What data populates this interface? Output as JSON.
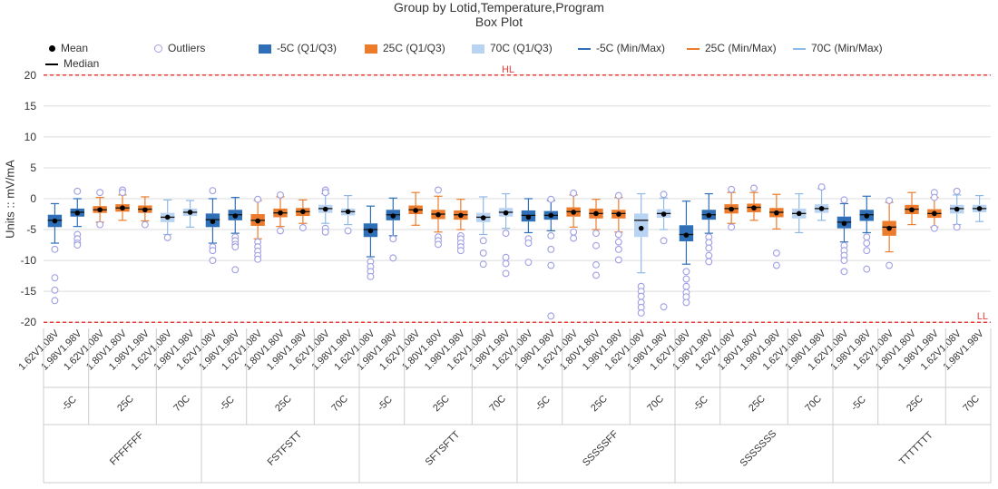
{
  "chart_data": {
    "type": "box",
    "title": "Group by Lotid,Temperature,Program",
    "subtitle": "Box Plot",
    "ylabel": "Units :: mV/mA",
    "ylim": [
      -21,
      21
    ],
    "yticks": [
      20,
      15,
      10,
      5,
      0,
      -5,
      -10,
      -15,
      -20
    ],
    "grid": true,
    "legend_position": "top",
    "limit_lines": [
      {
        "label": "HL",
        "value": 20,
        "color": "#e8403a"
      },
      {
        "label": "LL",
        "value": -20,
        "color": "#e8403a"
      }
    ],
    "legend": {
      "mean": "Mean",
      "median": "Median",
      "outliers": "Outliers",
      "box_m5": "-5C (Q1/Q3)",
      "box_25": "25C (Q1/Q3)",
      "box_70": "70C (Q1/Q3)",
      "mm_m5": "-5C (Min/Max)",
      "mm_25": "25C (Min/Max)",
      "mm_70": "70C (Min/Max)"
    },
    "colors": {
      "-5C": "#2e6fb7",
      "25C": "#ec7c2c",
      "70C": "#b8d4f2",
      "outlier": "#9f9fe3",
      "mean": "#000000",
      "limit": "#e8403a"
    },
    "lots": [
      {
        "lot": "FFFFFFF",
        "temps": [
          {
            "temp": "-5C",
            "boxes": [
              {
                "program": "1.62V1.08V",
                "min": -7.2,
                "q1": -4.6,
                "median": -3.5,
                "q3": -2.6,
                "max": -0.8,
                "mean": -3.6,
                "outliers": [
                  -8.2,
                  -12.8,
                  -14.8,
                  -16.5
                ]
              },
              {
                "program": "1.98V1.98V",
                "min": -4.5,
                "q1": -2.9,
                "median": -2.2,
                "q3": -1.6,
                "max": 0,
                "mean": -2.3,
                "outliers": [
                  1.2,
                  -5.8,
                  -6.5,
                  -7.2,
                  -7.5
                ]
              }
            ]
          },
          {
            "temp": "25C",
            "boxes": [
              {
                "program": "1.62V1.08V",
                "min": -3.8,
                "q1": -2.3,
                "median": -1.8,
                "q3": -1.2,
                "max": 0.2,
                "mean": -1.8,
                "outliers": [
                  1,
                  -4.2
                ]
              },
              {
                "program": "1.80V1.80V",
                "min": -3.5,
                "q1": -2.1,
                "median": -1.5,
                "q3": -0.9,
                "max": 0.6,
                "mean": -1.5,
                "outliers": [
                  1.4,
                  1.0
                ]
              },
              {
                "program": "1.98V1.98V",
                "min": -3.6,
                "q1": -2.3,
                "median": -1.7,
                "q3": -1.1,
                "max": 0.3,
                "mean": -1.8,
                "outliers": [
                  -4.2
                ]
              }
            ]
          },
          {
            "temp": "70C",
            "boxes": [
              {
                "program": "1.62V1.08V",
                "min": -5.8,
                "q1": -3.8,
                "median": -3.0,
                "q3": -2.3,
                "max": -0.2,
                "mean": -3.0,
                "outliers": [
                  -6.3
                ]
              },
              {
                "program": "1.98V1.98V",
                "min": -4.6,
                "q1": -2.8,
                "median": -2.2,
                "q3": -1.6,
                "max": -0.3,
                "mean": -2.2,
                "outliers": []
              }
            ]
          }
        ]
      },
      {
        "lot": "FSTFSTT",
        "temps": [
          {
            "temp": "-5C",
            "boxes": [
              {
                "program": "1.62V1.08V",
                "min": -7.2,
                "q1": -4.6,
                "median": -3.4,
                "q3": -2.4,
                "max": 0,
                "mean": -3.7,
                "outliers": [
                  1.3,
                  -7.8,
                  -8.4,
                  -10.0
                ]
              },
              {
                "program": "1.98V1.98V",
                "min": -5.6,
                "q1": -3.5,
                "median": -2.6,
                "q3": -1.8,
                "max": 0.2,
                "mean": -2.8,
                "outliers": [
                  -6.2,
                  -6.8,
                  -7.4,
                  -7.8,
                  -11.5
                ]
              }
            ]
          },
          {
            "temp": "25C",
            "boxes": [
              {
                "program": "1.62V1.08V",
                "min": -6.5,
                "q1": -4.4,
                "median": -3.5,
                "q3": -2.5,
                "max": -0.3,
                "mean": -3.6,
                "outliers": [
                  -0.1,
                  -7.0,
                  -7.8,
                  -8.5,
                  -9.2,
                  -9.8
                ]
              },
              {
                "program": "1.80V1.80V",
                "min": -4.5,
                "q1": -3.0,
                "median": -2.3,
                "q3": -1.6,
                "max": 0.3,
                "mean": -2.3,
                "outliers": [
                  0.6,
                  -5.2
                ]
              },
              {
                "program": "1.98V1.98V",
                "min": -4.0,
                "q1": -2.8,
                "median": -2.1,
                "q3": -1.5,
                "max": -0.2,
                "mean": -2.1,
                "outliers": [
                  -4.7
                ]
              }
            ]
          },
          {
            "temp": "70C",
            "boxes": [
              {
                "program": "1.62V1.08V",
                "min": -4.0,
                "q1": -2.3,
                "median": -1.6,
                "q3": -1.0,
                "max": 0.8,
                "mean": -1.7,
                "outliers": [
                  1.4,
                  1.0,
                  -4.8,
                  -5.4
                ]
              },
              {
                "program": "1.98V1.98V",
                "min": -4.2,
                "q1": -2.7,
                "median": -2.1,
                "q3": -1.6,
                "max": 0.5,
                "mean": -2.1,
                "outliers": [
                  -5.2
                ]
              }
            ]
          }
        ]
      },
      {
        "lot": "SFTSFTT",
        "temps": [
          {
            "temp": "-5C",
            "boxes": [
              {
                "program": "1.62V1.08V",
                "min": -9.4,
                "q1": -6.2,
                "median": -5.0,
                "q3": -4.0,
                "max": -1.2,
                "mean": -5.2,
                "outliers": [
                  -10.2,
                  -11.0,
                  -11.8,
                  -12.6
                ]
              },
              {
                "program": "1.98V1.98V",
                "min": -6.0,
                "q1": -3.5,
                "median": -2.6,
                "q3": -1.8,
                "max": 0.1,
                "mean": -2.8,
                "outliers": [
                  -6.5,
                  -9.6
                ]
              }
            ]
          },
          {
            "temp": "25C",
            "boxes": [
              {
                "program": "1.62V1.08V",
                "min": -4.3,
                "q1": -2.5,
                "median": -1.8,
                "q3": -1.1,
                "max": 1.0,
                "mean": -1.9,
                "outliers": []
              },
              {
                "program": "1.80V1.80V",
                "min": -5.4,
                "q1": -3.3,
                "median": -2.5,
                "q3": -1.8,
                "max": 0.4,
                "mean": -2.6,
                "outliers": [
                  1.4,
                  -6.2,
                  -6.8,
                  -7.4
                ]
              },
              {
                "program": "1.98V1.98V",
                "min": -5.0,
                "q1": -3.4,
                "median": -2.6,
                "q3": -1.9,
                "max": -0.1,
                "mean": -2.7,
                "outliers": [
                  -6.0,
                  -6.5,
                  -7.2,
                  -7.8,
                  -8.4
                ]
              }
            ]
          },
          {
            "temp": "70C",
            "boxes": [
              {
                "program": "1.62V1.08V",
                "min": -5.8,
                "q1": -3.8,
                "median": -3.0,
                "q3": -2.3,
                "max": 0.3,
                "mean": -3.1,
                "outliers": [
                  -6.8,
                  -8.8,
                  -10.6
                ]
              },
              {
                "program": "1.98V1.98V",
                "min": -4.8,
                "q1": -2.9,
                "median": -2.2,
                "q3": -1.5,
                "max": 0.8,
                "mean": -2.3,
                "outliers": [
                  -5.6,
                  -9.5,
                  -10.5,
                  -12.1
                ]
              }
            ]
          }
        ]
      },
      {
        "lot": "SSSSSFF",
        "temps": [
          {
            "temp": "-5C",
            "boxes": [
              {
                "program": "1.62V1.08V",
                "min": -5.5,
                "q1": -3.7,
                "median": -2.7,
                "q3": -1.9,
                "max": 0,
                "mean": -3.0,
                "outliers": [
                  -6.5,
                  -7.2,
                  -10.3
                ]
              },
              {
                "program": "1.98V1.98V",
                "min": -5.2,
                "q1": -3.4,
                "median": -2.7,
                "q3": -2.0,
                "max": -0.3,
                "mean": -2.7,
                "outliers": [
                  -0.1,
                  -6.0,
                  -8.2,
                  -10.8,
                  -19.0
                ]
              }
            ]
          },
          {
            "temp": "25C",
            "boxes": [
              {
                "program": "1.62V1.08V",
                "min": -4.6,
                "q1": -2.9,
                "median": -2.1,
                "q3": -1.4,
                "max": 0.6,
                "mean": -2.2,
                "outliers": [
                  0.9,
                  -5.4,
                  -6.4
                ]
              },
              {
                "program": "1.80V1.80V",
                "min": -5.0,
                "q1": -3.2,
                "median": -2.4,
                "q3": -1.6,
                "max": -0.1,
                "mean": -2.4,
                "outliers": [
                  -5.6,
                  -7.6,
                  -10.7,
                  -12.4
                ]
              },
              {
                "program": "1.98V1.98V",
                "min": -5.4,
                "q1": -3.2,
                "median": -2.4,
                "q3": -1.8,
                "max": 0.2,
                "mean": -2.5,
                "outliers": [
                  0.5,
                  -5.8,
                  -7.0,
                  -8.2,
                  -9.9
                ]
              }
            ]
          },
          {
            "temp": "70C",
            "boxes": [
              {
                "program": "1.62V1.08V",
                "min": -12.0,
                "q1": -6.2,
                "median": -3.5,
                "q3": -2.4,
                "max": 0.8,
                "mean": -4.8,
                "outliers": [
                  -14.2,
                  -15.0,
                  -15.8,
                  -16.8,
                  -17.6,
                  -18.5
                ]
              },
              {
                "program": "1.98V1.98V",
                "min": -5.0,
                "q1": -3.1,
                "median": -2.4,
                "q3": -1.7,
                "max": 0.1,
                "mean": -2.5,
                "outliers": [
                  0.7,
                  -6.8,
                  -17.5
                ]
              }
            ]
          }
        ]
      },
      {
        "lot": "SSSSSSS",
        "temps": [
          {
            "temp": "-5C",
            "boxes": [
              {
                "program": "1.62V1.08V",
                "min": -10.6,
                "q1": -6.9,
                "median": -5.8,
                "q3": -4.3,
                "max": -0.4,
                "mean": -5.9,
                "outliers": [
                  -11.8,
                  -13.0,
                  -14.2,
                  -15.2,
                  -15.9,
                  -16.8
                ]
              },
              {
                "program": "1.98V1.98V",
                "min": -5.6,
                "q1": -3.4,
                "median": -2.6,
                "q3": -1.8,
                "max": 0.8,
                "mean": -2.7,
                "outliers": [
                  -6.2,
                  -7.1,
                  -8.0,
                  -9.2,
                  -10.2
                ]
              }
            ]
          },
          {
            "temp": "25C",
            "boxes": [
              {
                "program": "1.62V1.08V",
                "min": -4.0,
                "q1": -2.4,
                "median": -1.6,
                "q3": -0.9,
                "max": 1.0,
                "mean": -1.7,
                "outliers": [
                  1.5,
                  -4.6
                ]
              },
              {
                "program": "1.80V1.80V",
                "min": -3.5,
                "q1": -2.2,
                "median": -1.4,
                "q3": -0.8,
                "max": 1.0,
                "mean": -1.5,
                "outliers": [
                  1.7
                ]
              },
              {
                "program": "1.98V1.98V",
                "min": -4.9,
                "q1": -3.0,
                "median": -2.2,
                "q3": -1.5,
                "max": 0.7,
                "mean": -2.3,
                "outliers": [
                  -8.8,
                  -10.8
                ]
              }
            ]
          },
          {
            "temp": "70C",
            "boxes": [
              {
                "program": "1.62V1.08V",
                "min": -5.5,
                "q1": -3.2,
                "median": -2.4,
                "q3": -1.6,
                "max": 0.8,
                "mean": -2.4,
                "outliers": []
              },
              {
                "program": "1.98V1.98V",
                "min": -3.5,
                "q1": -2.3,
                "median": -1.6,
                "q3": -0.9,
                "max": 1.6,
                "mean": -1.6,
                "outliers": [
                  1.9
                ]
              }
            ]
          }
        ]
      },
      {
        "lot": "TTTTTTT",
        "temps": [
          {
            "temp": "-5C",
            "boxes": [
              {
                "program": "1.62V1.08V",
                "min": -7.0,
                "q1": -4.8,
                "median": -3.8,
                "q3": -2.9,
                "max": -0.8,
                "mean": -4.0,
                "outliers": [
                  -0.2,
                  -7.6,
                  -8.4,
                  -9.2,
                  -10.0,
                  -11.8
                ]
              },
              {
                "program": "1.98V1.98V",
                "min": -5.5,
                "q1": -3.6,
                "median": -2.6,
                "q3": -1.8,
                "max": 0.4,
                "mean": -2.8,
                "outliers": [
                  -6.2,
                  -7.2,
                  -8.4,
                  -11.4
                ]
              }
            ]
          },
          {
            "temp": "25C",
            "boxes": [
              {
                "program": "1.62V1.08V",
                "min": -8.6,
                "q1": -6.0,
                "median": -4.6,
                "q3": -3.6,
                "max": -0.6,
                "mean": -4.8,
                "outliers": [
                  -0.3,
                  -10.8
                ]
              },
              {
                "program": "1.80V1.80V",
                "min": -4.2,
                "q1": -2.5,
                "median": -1.7,
                "q3": -1.0,
                "max": 1.0,
                "mean": -1.8,
                "outliers": []
              },
              {
                "program": "1.98V1.98V",
                "min": -4.6,
                "q1": -3.1,
                "median": -2.4,
                "q3": -1.7,
                "max": 0.2,
                "mean": -2.4,
                "outliers": [
                  1.0,
                  0.2,
                  -4.8
                ]
              }
            ]
          },
          {
            "temp": "70C",
            "boxes": [
              {
                "program": "1.62V1.08V",
                "min": -4.2,
                "q1": -2.4,
                "median": -1.6,
                "q3": -1.0,
                "max": 0.6,
                "mean": -1.7,
                "outliers": [
                  1.2,
                  -4.6
                ]
              },
              {
                "program": "1.98V1.98V",
                "min": -3.7,
                "q1": -2.2,
                "median": -1.6,
                "q3": -1.0,
                "max": 0.5,
                "mean": -1.6,
                "outliers": []
              }
            ]
          }
        ]
      }
    ]
  }
}
